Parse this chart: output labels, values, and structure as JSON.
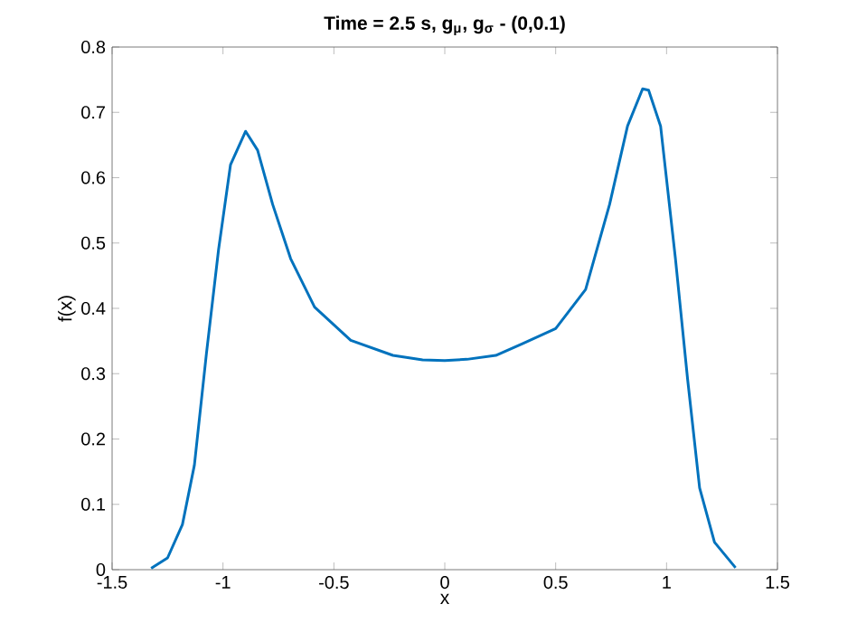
{
  "chart_data": {
    "type": "line",
    "title": "Time = 2.5 s, g$_{μ}$, g$_{σ}$ - (0,0.1)",
    "xlabel": "x",
    "ylabel": "f(x)",
    "x": [
      -1.324,
      -1.25,
      -1.183,
      -1.129,
      -1.075,
      -1.02,
      -0.966,
      -0.898,
      -0.844,
      -0.776,
      -0.695,
      -0.587,
      -0.424,
      -0.234,
      -0.1,
      0,
      0.1,
      0.23,
      0.35,
      0.5,
      0.635,
      0.743,
      0.824,
      0.892,
      0.919,
      0.973,
      1.04,
      1.095,
      1.149,
      1.216,
      1.311
    ],
    "series": [
      {
        "color": "#0072bd",
        "values": [
          0.002,
          0.018,
          0.069,
          0.16,
          0.33,
          0.49,
          0.62,
          0.671,
          0.642,
          0.559,
          0.476,
          0.402,
          0.351,
          0.328,
          0.321,
          0.32,
          0.322,
          0.328,
          0.346,
          0.369,
          0.429,
          0.559,
          0.679,
          0.736,
          0.734,
          0.679,
          0.476,
          0.291,
          0.125,
          0.042,
          0.003
        ]
      }
    ],
    "xlim": [
      -1.5,
      1.5
    ],
    "ylim": [
      0,
      0.8
    ],
    "xticks": [
      -1.5,
      -1,
      -0.5,
      0,
      0.5,
      1,
      1.5
    ],
    "yticks": [
      0,
      0.1,
      0.2,
      0.3,
      0.4,
      0.5,
      0.6,
      0.7,
      0.8
    ],
    "line_style": "solid"
  }
}
